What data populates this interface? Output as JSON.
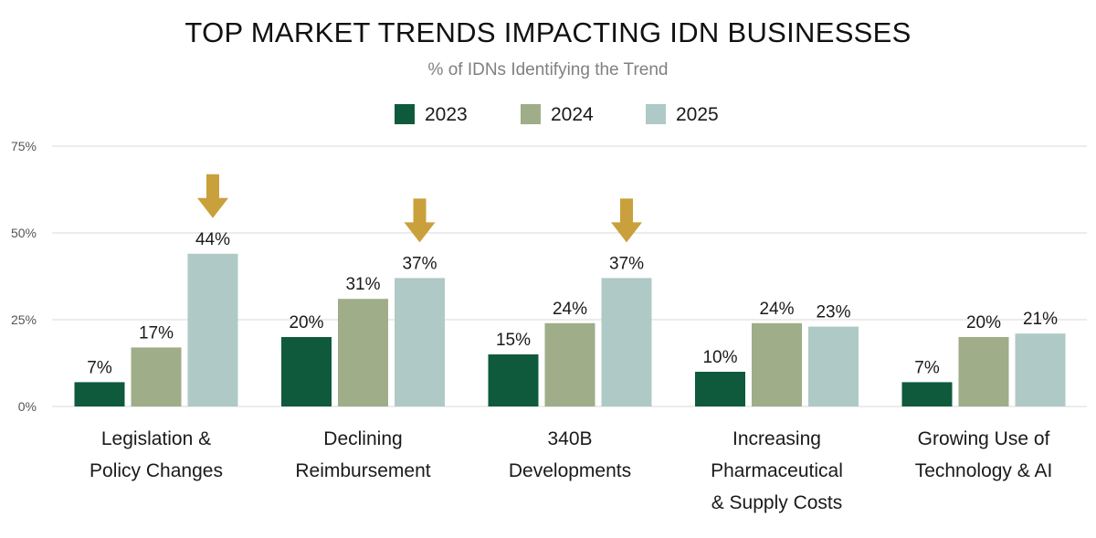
{
  "chart_data": {
    "type": "bar",
    "title": "TOP MARKET TRENDS IMPACTING IDN BUSINESSES",
    "subtitle": "% of IDNs Identifying the Trend",
    "categories": [
      [
        "Legislation &",
        "Policy Changes"
      ],
      [
        "Declining",
        "Reimbursement"
      ],
      [
        "340B",
        "Developments"
      ],
      [
        "Increasing",
        "Pharmaceutical",
        "& Supply Costs"
      ],
      [
        "Growing Use of",
        "Technology & AI"
      ]
    ],
    "series": [
      {
        "name": "2023",
        "color": "#0f5a3c",
        "values": [
          7,
          20,
          15,
          10,
          7
        ]
      },
      {
        "name": "2024",
        "color": "#9fad89",
        "values": [
          17,
          31,
          24,
          24,
          20
        ]
      },
      {
        "name": "2025",
        "color": "#afc9c6",
        "values": [
          44,
          37,
          37,
          23,
          21
        ]
      }
    ],
    "data_labels": [
      [
        "7%",
        "20%",
        "15%",
        "10%",
        "7%"
      ],
      [
        "17%",
        "31%",
        "24%",
        "24%",
        "20%"
      ],
      [
        "44%",
        "37%",
        "37%",
        "23%",
        "21%"
      ]
    ],
    "highlight_arrows": {
      "series_index": 2,
      "categories": [
        0,
        1,
        2
      ],
      "color": "#c9a03c",
      "icon": "down-arrow-icon"
    },
    "yticks": [
      0,
      25,
      50,
      75
    ],
    "ytick_labels": [
      "0%",
      "25%",
      "50%",
      "75%"
    ],
    "ylim": [
      0,
      75
    ],
    "xlabel": "",
    "ylabel": "",
    "grid": true,
    "legend_position": "top-center"
  }
}
